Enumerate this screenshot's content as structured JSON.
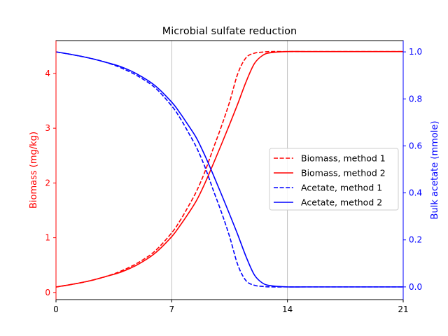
{
  "chart_data": {
    "type": "line",
    "title": "Microbial sulfate reduction",
    "xlabel": "",
    "ylabel_left": "Biomass (mg/kg)",
    "ylabel_right": "Bulk acetate (mmole)",
    "xlim": [
      0,
      21
    ],
    "ylim_left": [
      -0.13,
      4.6
    ],
    "ylim_right": [
      -0.054,
      1.048
    ],
    "x_ticks": [
      0,
      7,
      14,
      21
    ],
    "y_left_ticks": [
      0,
      1,
      2,
      3,
      4
    ],
    "y_right_ticks": [
      "0.0",
      "0.2",
      "0.4",
      "0.6",
      "0.8",
      "1.0"
    ],
    "grid": "vertical lines at x ticks",
    "legend_placement": "center-right",
    "left_axis_color": "#ff0000",
    "right_axis_color": "#0000ff",
    "x": [
      0,
      1,
      2,
      3,
      4,
      5,
      6,
      7,
      7.5,
      8,
      8.5,
      9,
      9.5,
      10,
      10.5,
      11,
      11.5,
      12,
      12.5,
      13,
      14,
      15,
      16,
      17,
      18,
      19,
      20,
      21
    ],
    "series": [
      {
        "name": "Biomass, method 1",
        "axis": "left",
        "color": "#ff0000",
        "style": "dashed",
        "values": [
          0.1,
          0.15,
          0.21,
          0.29,
          0.4,
          0.55,
          0.76,
          1.09,
          1.31,
          1.57,
          1.85,
          2.2,
          2.62,
          3.03,
          3.48,
          4.0,
          4.29,
          4.37,
          4.39,
          4.4,
          4.4,
          4.4,
          4.4,
          4.4,
          4.4,
          4.4,
          4.4,
          4.4
        ]
      },
      {
        "name": "Biomass, method 2",
        "axis": "left",
        "color": "#ff0000",
        "style": "solid",
        "values": [
          0.1,
          0.15,
          0.21,
          0.29,
          0.38,
          0.52,
          0.72,
          1.02,
          1.22,
          1.44,
          1.68,
          1.99,
          2.34,
          2.7,
          3.07,
          3.45,
          3.85,
          4.18,
          4.33,
          4.38,
          4.4,
          4.4,
          4.4,
          4.4,
          4.4,
          4.4,
          4.4,
          4.4
        ]
      },
      {
        "name": "Acetate, method 1",
        "axis": "right",
        "color": "#0000ff",
        "style": "dashed",
        "values": [
          1.0,
          0.988,
          0.974,
          0.956,
          0.93,
          0.895,
          0.847,
          0.77,
          0.719,
          0.658,
          0.593,
          0.512,
          0.414,
          0.319,
          0.214,
          0.093,
          0.026,
          0.007,
          0.002,
          0.0,
          0.0,
          0.0,
          0.0,
          0.0,
          0.0,
          0.0,
          0.0,
          0.0
        ]
      },
      {
        "name": "Acetate, method 2",
        "axis": "right",
        "color": "#0000ff",
        "style": "solid",
        "values": [
          1.0,
          0.988,
          0.974,
          0.956,
          0.935,
          0.902,
          0.856,
          0.786,
          0.74,
          0.688,
          0.633,
          0.56,
          0.479,
          0.395,
          0.309,
          0.221,
          0.128,
          0.051,
          0.016,
          0.005,
          0.0,
          0.0,
          0.0,
          0.0,
          0.0,
          0.0,
          0.0,
          0.0
        ]
      }
    ]
  }
}
